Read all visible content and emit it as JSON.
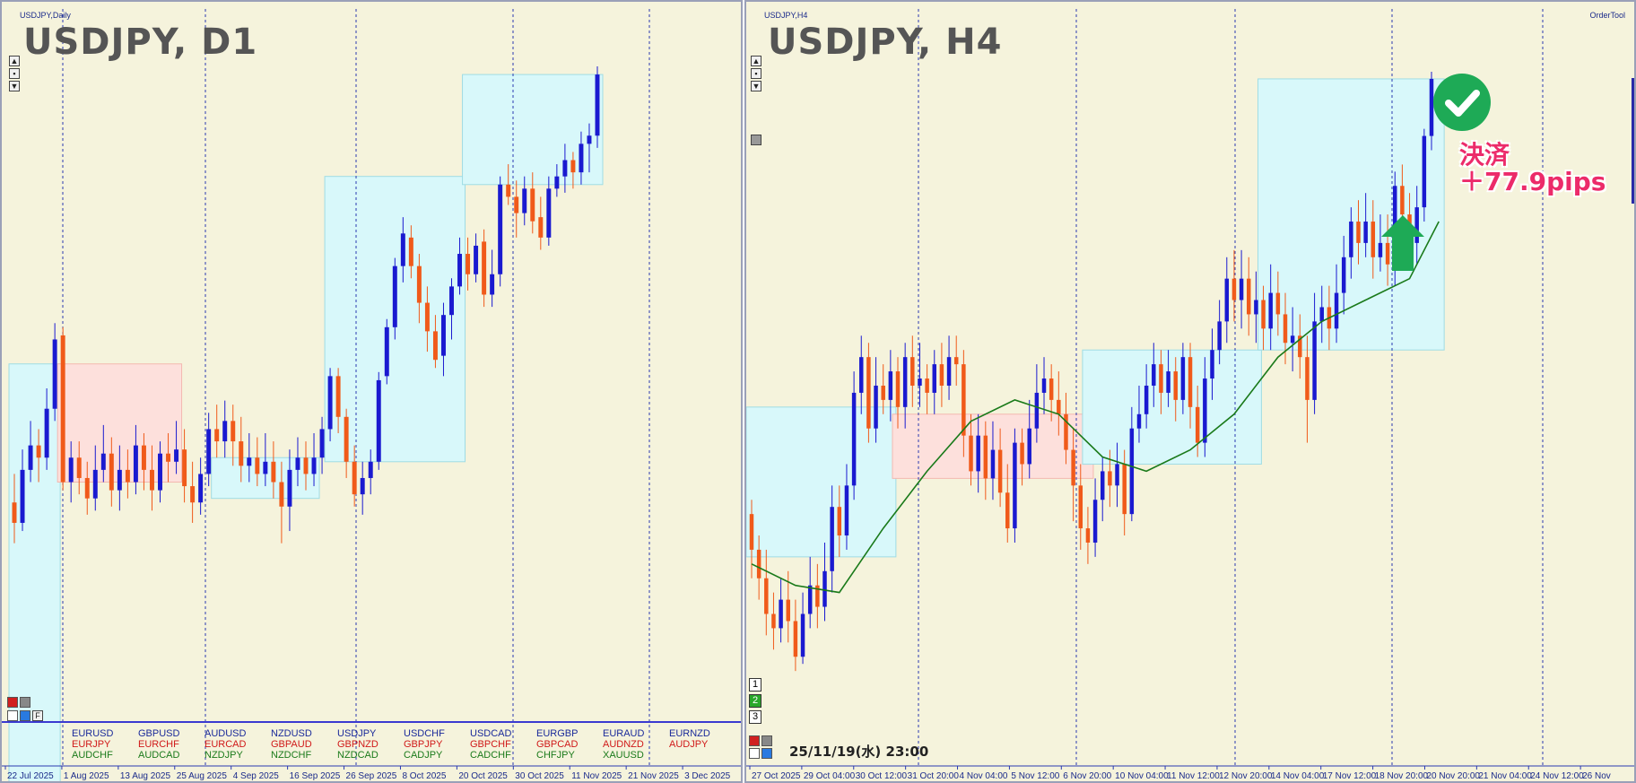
{
  "left_panel": {
    "caption": "USDJPY,Daily",
    "title": "USDJPY, D1",
    "x_labels": [
      "22 Jul 2025",
      "1 Aug 2025",
      "13 Aug 2025",
      "25 Aug 2025",
      "4 Sep 2025",
      "16 Sep 2025",
      "26 Sep 2025",
      "8 Oct 2025",
      "20 Oct 2025",
      "30 Oct 2025",
      "11 Nov 2025",
      "21 Nov 2025",
      "3 Dec 2025"
    ],
    "pairs": [
      [
        "EURUSD",
        "GBPUSD",
        "AUDUSD",
        "NZDUSD",
        "USDJPY",
        "USDCHF",
        "USDCAD",
        "EURGBP",
        "EURAUD",
        "EURNZD"
      ],
      [
        "EURJPY",
        "EURCHF",
        "EURCAD",
        "GBPAUD",
        "GBPNZD",
        "GBPJPY",
        "GBPCHF",
        "GBPCAD",
        "AUDNZD",
        "AUDJPY"
      ],
      [
        "AUDCHF",
        "AUDCAD",
        "NZDJPY",
        "NZDCHF",
        "NZDCAD",
        "CADJPY",
        "CADCHF",
        "CHFJPY",
        "XAUUSD",
        ""
      ]
    ],
    "f_label": "F"
  },
  "right_panel": {
    "caption": "USDJPY,H4",
    "title": "USDJPY, H4",
    "ordertool": "OrderTool",
    "x_labels": [
      "27 Oct 2025",
      "29 Oct 04:00",
      "30 Oct 12:00",
      "31 Oct 20:00",
      "4 Nov 04:00",
      "5 Nov 12:00",
      "6 Nov 20:00",
      "10 Nov 04:00",
      "11 Nov 12:00",
      "12 Nov 20:00",
      "14 Nov 04:00",
      "17 Nov 12:00",
      "18 Nov 20:00",
      "20 Nov 20:00",
      "21 Nov 04:00",
      "24 Nov 12:00",
      "26 Nov"
    ],
    "num_buttons": [
      "1",
      "2",
      "3"
    ],
    "datetime": "25/11/19(水) 23:00",
    "annotation_line1": "決済",
    "annotation_line2": "＋77.9pips"
  },
  "colors": {
    "background": "#f5f3dc",
    "bull_candle": "#1a1ad0",
    "bear_candle": "#f05a1a",
    "box_cyan": "#d8f8fa",
    "box_pink": "#fde0dc",
    "ma_line": "#1a7a1a",
    "check_green": "#1eaa56",
    "arrow_green": "#1eaa56",
    "annotation_pink": "#ec2b6a"
  },
  "chart_data": [
    {
      "type": "candlestick",
      "title": "USDJPY, D1",
      "x_ticks": [
        "22 Jul 2025",
        "1 Aug 2025",
        "13 Aug 2025",
        "25 Aug 2025",
        "4 Sep 2025",
        "16 Sep 2025",
        "26 Sep 2025",
        "8 Oct 2025",
        "20 Oct 2025",
        "30 Oct 2025",
        "11 Nov 2025",
        "21 Nov 2025",
        "3 Dec 2025"
      ],
      "candles": [
        [
          146.5,
          146.0,
          147.2,
          145.5
        ],
        [
          146.0,
          147.3,
          147.8,
          145.8
        ],
        [
          147.3,
          147.9,
          148.5,
          147.0
        ],
        [
          147.9,
          147.6,
          148.3,
          147.0
        ],
        [
          147.6,
          148.8,
          149.3,
          147.3
        ],
        [
          148.8,
          150.5,
          150.9,
          148.5
        ],
        [
          150.6,
          147.0,
          150.8,
          146.8
        ],
        [
          147.0,
          147.6,
          148.0,
          146.5
        ],
        [
          147.6,
          147.1,
          148.0,
          146.7
        ],
        [
          147.1,
          146.6,
          147.5,
          146.2
        ],
        [
          146.6,
          147.3,
          147.9,
          146.3
        ],
        [
          147.3,
          147.7,
          148.4,
          147.0
        ],
        [
          147.7,
          146.8,
          148.1,
          146.4
        ],
        [
          146.8,
          147.3,
          147.9,
          146.3
        ],
        [
          147.3,
          147.0,
          147.8,
          146.6
        ],
        [
          147.0,
          147.9,
          148.4,
          146.7
        ],
        [
          147.9,
          147.3,
          148.2,
          146.8
        ],
        [
          147.3,
          146.8,
          147.9,
          146.3
        ],
        [
          146.8,
          147.7,
          148.0,
          146.5
        ],
        [
          147.7,
          147.5,
          148.2,
          147.0
        ],
        [
          147.5,
          147.8,
          148.5,
          147.2
        ],
        [
          147.8,
          146.9,
          148.3,
          146.5
        ],
        [
          146.9,
          146.5,
          147.5,
          146.0
        ],
        [
          146.5,
          147.2,
          147.6,
          146.2
        ],
        [
          147.2,
          148.3,
          148.7,
          146.9
        ],
        [
          148.3,
          148.0,
          148.9,
          147.6
        ],
        [
          148.0,
          148.5,
          149.0,
          147.6
        ],
        [
          148.5,
          148.0,
          148.9,
          147.4
        ],
        [
          148.0,
          147.4,
          148.6,
          147.0
        ],
        [
          147.4,
          147.6,
          148.2,
          147.0
        ],
        [
          147.6,
          147.2,
          148.1,
          146.9
        ],
        [
          147.2,
          147.5,
          148.2,
          146.9
        ],
        [
          147.5,
          147.0,
          148.0,
          146.6
        ],
        [
          147.0,
          146.4,
          147.5,
          145.5
        ],
        [
          146.4,
          147.3,
          147.8,
          145.8
        ],
        [
          147.3,
          147.6,
          148.1,
          146.9
        ],
        [
          147.6,
          147.2,
          148.0,
          146.8
        ],
        [
          147.2,
          147.6,
          148.2,
          146.9
        ],
        [
          147.6,
          148.3,
          148.6,
          147.2
        ],
        [
          148.3,
          149.6,
          149.8,
          148.0
        ],
        [
          149.6,
          148.6,
          149.8,
          148.2
        ],
        [
          148.6,
          147.5,
          148.8,
          147.1
        ],
        [
          147.5,
          146.7,
          147.9,
          146.4
        ],
        [
          146.7,
          147.1,
          147.5,
          146.2
        ],
        [
          147.1,
          147.5,
          147.8,
          146.7
        ],
        [
          147.5,
          149.5,
          149.7,
          147.3
        ],
        [
          149.6,
          150.8,
          151.0,
          149.4
        ],
        [
          150.8,
          152.3,
          152.5,
          150.5
        ],
        [
          152.3,
          153.1,
          153.5,
          151.9
        ],
        [
          153.0,
          152.3,
          153.3,
          152.0
        ],
        [
          152.3,
          151.4,
          152.6,
          150.9
        ],
        [
          151.4,
          150.7,
          151.8,
          150.2
        ],
        [
          150.7,
          150.0,
          151.1,
          149.8
        ],
        [
          150.1,
          151.1,
          151.4,
          149.6
        ],
        [
          151.1,
          151.8,
          152.0,
          150.5
        ],
        [
          151.8,
          152.6,
          153.0,
          151.6
        ],
        [
          152.6,
          152.1,
          153.0,
          151.7
        ],
        [
          152.1,
          152.8,
          153.1,
          151.9
        ],
        [
          152.9,
          151.6,
          153.2,
          151.3
        ],
        [
          151.6,
          152.1,
          152.7,
          151.3
        ],
        [
          152.1,
          154.3,
          154.5,
          151.8
        ],
        [
          154.3,
          154.0,
          154.8,
          153.8
        ],
        [
          154.0,
          153.6,
          154.4,
          153.0
        ],
        [
          153.6,
          154.2,
          154.5,
          153.3
        ],
        [
          154.2,
          153.4,
          154.6,
          153.1
        ],
        [
          153.5,
          153.0,
          154.0,
          152.7
        ],
        [
          153.0,
          154.2,
          154.5,
          152.8
        ],
        [
          154.2,
          154.5,
          154.8,
          154.0
        ],
        [
          154.5,
          154.9,
          155.3,
          154.1
        ],
        [
          154.9,
          154.6,
          155.1,
          154.2
        ],
        [
          154.6,
          155.3,
          155.6,
          154.3
        ],
        [
          155.3,
          155.5,
          155.8,
          154.6
        ],
        [
          155.5,
          157.0,
          157.2,
          155.2
        ]
      ]
    },
    {
      "type": "candlestick",
      "title": "USDJPY, H4",
      "x_ticks": [
        "27 Oct 2025",
        "29 Oct 04:00",
        "30 Oct 12:00",
        "31 Oct 20:00",
        "4 Nov 04:00",
        "5 Nov 12:00",
        "6 Nov 20:00",
        "10 Nov 04:00",
        "11 Nov 12:00",
        "12 Nov 20:00",
        "14 Nov 04:00",
        "17 Nov 12:00",
        "18 Nov 20:00",
        "20 Nov 20:00",
        "21 Nov 04:00",
        "24 Nov 12:00",
        "26 Nov"
      ],
      "candles": [
        [
          152.8,
          152.3,
          153.0,
          151.9
        ],
        [
          152.3,
          151.9,
          152.5,
          151.6
        ],
        [
          151.9,
          151.4,
          152.3,
          151.1
        ],
        [
          151.4,
          151.2,
          151.7,
          150.9
        ],
        [
          151.2,
          151.6,
          151.9,
          151.0
        ],
        [
          151.6,
          151.3,
          152.0,
          151.0
        ],
        [
          151.3,
          150.8,
          151.6,
          150.6
        ],
        [
          150.8,
          151.4,
          151.7,
          150.7
        ],
        [
          151.4,
          151.8,
          152.2,
          151.2
        ],
        [
          151.8,
          151.5,
          152.1,
          151.2
        ],
        [
          151.5,
          152.0,
          152.4,
          151.3
        ],
        [
          152.0,
          152.9,
          153.2,
          151.7
        ],
        [
          152.9,
          152.5,
          153.2,
          152.2
        ],
        [
          152.5,
          153.2,
          153.5,
          152.3
        ],
        [
          153.2,
          154.5,
          154.8,
          153.0
        ],
        [
          154.5,
          155.0,
          155.3,
          154.2
        ],
        [
          155.0,
          154.0,
          155.2,
          153.8
        ],
        [
          154.0,
          154.6,
          155.0,
          153.8
        ],
        [
          154.6,
          154.4,
          154.9,
          154.2
        ],
        [
          154.4,
          154.8,
          155.1,
          154.1
        ],
        [
          154.8,
          154.3,
          155.0,
          154.0
        ],
        [
          154.3,
          155.0,
          155.2,
          154.0
        ],
        [
          155.0,
          154.6,
          155.3,
          154.3
        ],
        [
          154.6,
          154.7,
          155.2,
          154.3
        ],
        [
          154.7,
          154.5,
          154.9,
          154.2
        ],
        [
          154.5,
          154.9,
          155.1,
          154.2
        ],
        [
          154.9,
          154.6,
          155.2,
          154.3
        ],
        [
          154.6,
          155.0,
          155.3,
          154.4
        ],
        [
          155.0,
          154.9,
          155.3,
          154.6
        ],
        [
          154.9,
          153.9,
          155.1,
          153.6
        ],
        [
          153.9,
          153.4,
          154.2,
          153.2
        ],
        [
          153.4,
          153.9,
          154.2,
          153.1
        ],
        [
          153.9,
          153.3,
          154.1,
          153.0
        ],
        [
          153.3,
          153.7,
          154.1,
          153.0
        ],
        [
          153.7,
          153.1,
          154.0,
          152.9
        ],
        [
          153.1,
          152.6,
          153.5,
          152.4
        ],
        [
          152.6,
          153.8,
          154.0,
          152.4
        ],
        [
          153.8,
          153.5,
          154.0,
          153.2
        ],
        [
          153.5,
          154.0,
          154.4,
          153.3
        ],
        [
          154.0,
          154.5,
          154.9,
          153.8
        ],
        [
          154.5,
          154.7,
          155.0,
          154.2
        ],
        [
          154.7,
          154.4,
          154.9,
          154.1
        ],
        [
          154.4,
          154.2,
          154.8,
          153.9
        ],
        [
          154.2,
          153.7,
          154.5,
          153.5
        ],
        [
          153.7,
          153.2,
          154.0,
          152.7
        ],
        [
          153.2,
          152.6,
          153.5,
          152.3
        ],
        [
          152.6,
          152.4,
          152.9,
          152.1
        ],
        [
          152.4,
          153.0,
          153.3,
          152.2
        ],
        [
          153.0,
          153.4,
          153.6,
          152.7
        ],
        [
          153.4,
          153.2,
          153.7,
          152.9
        ],
        [
          153.2,
          153.5,
          153.8,
          152.9
        ],
        [
          153.5,
          152.8,
          153.7,
          152.5
        ],
        [
          152.8,
          154.0,
          154.3,
          152.7
        ],
        [
          154.0,
          154.2,
          154.6,
          153.8
        ],
        [
          154.2,
          154.6,
          154.9,
          154.0
        ],
        [
          154.6,
          154.9,
          155.2,
          154.3
        ],
        [
          154.9,
          154.5,
          155.1,
          154.2
        ],
        [
          154.5,
          154.8,
          155.1,
          154.3
        ],
        [
          154.8,
          154.4,
          155.0,
          154.1
        ],
        [
          154.4,
          155.0,
          155.2,
          154.2
        ],
        [
          155.0,
          154.3,
          155.2,
          154.0
        ],
        [
          154.3,
          153.8,
          154.6,
          153.6
        ],
        [
          153.8,
          154.7,
          155.0,
          153.6
        ],
        [
          154.7,
          155.1,
          155.4,
          154.4
        ],
        [
          155.1,
          155.5,
          155.8,
          154.9
        ],
        [
          155.5,
          156.1,
          156.4,
          155.2
        ],
        [
          156.1,
          155.8,
          156.5,
          155.5
        ],
        [
          155.8,
          156.1,
          156.5,
          155.4
        ],
        [
          156.1,
          155.6,
          156.4,
          155.3
        ],
        [
          155.6,
          155.8,
          156.2,
          155.2
        ],
        [
          155.8,
          155.4,
          156.0,
          155.1
        ],
        [
          155.4,
          155.9,
          156.3,
          155.1
        ],
        [
          155.9,
          155.6,
          156.2,
          155.3
        ],
        [
          155.6,
          155.2,
          155.9,
          154.9
        ],
        [
          155.2,
          155.3,
          155.7,
          154.8
        ],
        [
          155.3,
          155.0,
          155.6,
          154.7
        ],
        [
          155.0,
          154.4,
          155.3,
          153.8
        ],
        [
          154.4,
          155.5,
          155.9,
          154.2
        ],
        [
          155.5,
          155.7,
          156.0,
          155.2
        ],
        [
          155.7,
          155.4,
          156.0,
          155.1
        ],
        [
          155.4,
          155.9,
          156.3,
          155.2
        ],
        [
          155.9,
          156.4,
          156.7,
          155.6
        ],
        [
          156.4,
          156.9,
          157.1,
          156.1
        ],
        [
          156.9,
          156.6,
          157.2,
          156.3
        ],
        [
          156.6,
          156.9,
          157.3,
          156.4
        ],
        [
          156.9,
          156.4,
          157.2,
          156.1
        ],
        [
          156.4,
          156.6,
          157.0,
          156.2
        ],
        [
          156.6,
          156.3,
          157.0,
          156.0
        ],
        [
          156.3,
          157.4,
          157.6,
          156.0
        ],
        [
          157.4,
          157.0,
          157.7,
          156.8
        ],
        [
          157.0,
          156.6,
          157.3,
          156.3
        ],
        [
          156.6,
          157.1,
          157.4,
          156.3
        ],
        [
          157.1,
          158.1,
          158.2,
          156.9
        ],
        [
          158.1,
          158.9,
          159.0,
          157.9
        ]
      ],
      "moving_average": [
        [
          0,
          152.1
        ],
        [
          6,
          151.8
        ],
        [
          12,
          151.7
        ],
        [
          18,
          152.6
        ],
        [
          24,
          153.4
        ],
        [
          30,
          154.1
        ],
        [
          36,
          154.4
        ],
        [
          42,
          154.2
        ],
        [
          48,
          153.6
        ],
        [
          54,
          153.4
        ],
        [
          60,
          153.7
        ],
        [
          66,
          154.2
        ],
        [
          72,
          155.0
        ],
        [
          78,
          155.5
        ],
        [
          84,
          155.8
        ],
        [
          90,
          156.1
        ],
        [
          94,
          156.9
        ]
      ]
    }
  ]
}
